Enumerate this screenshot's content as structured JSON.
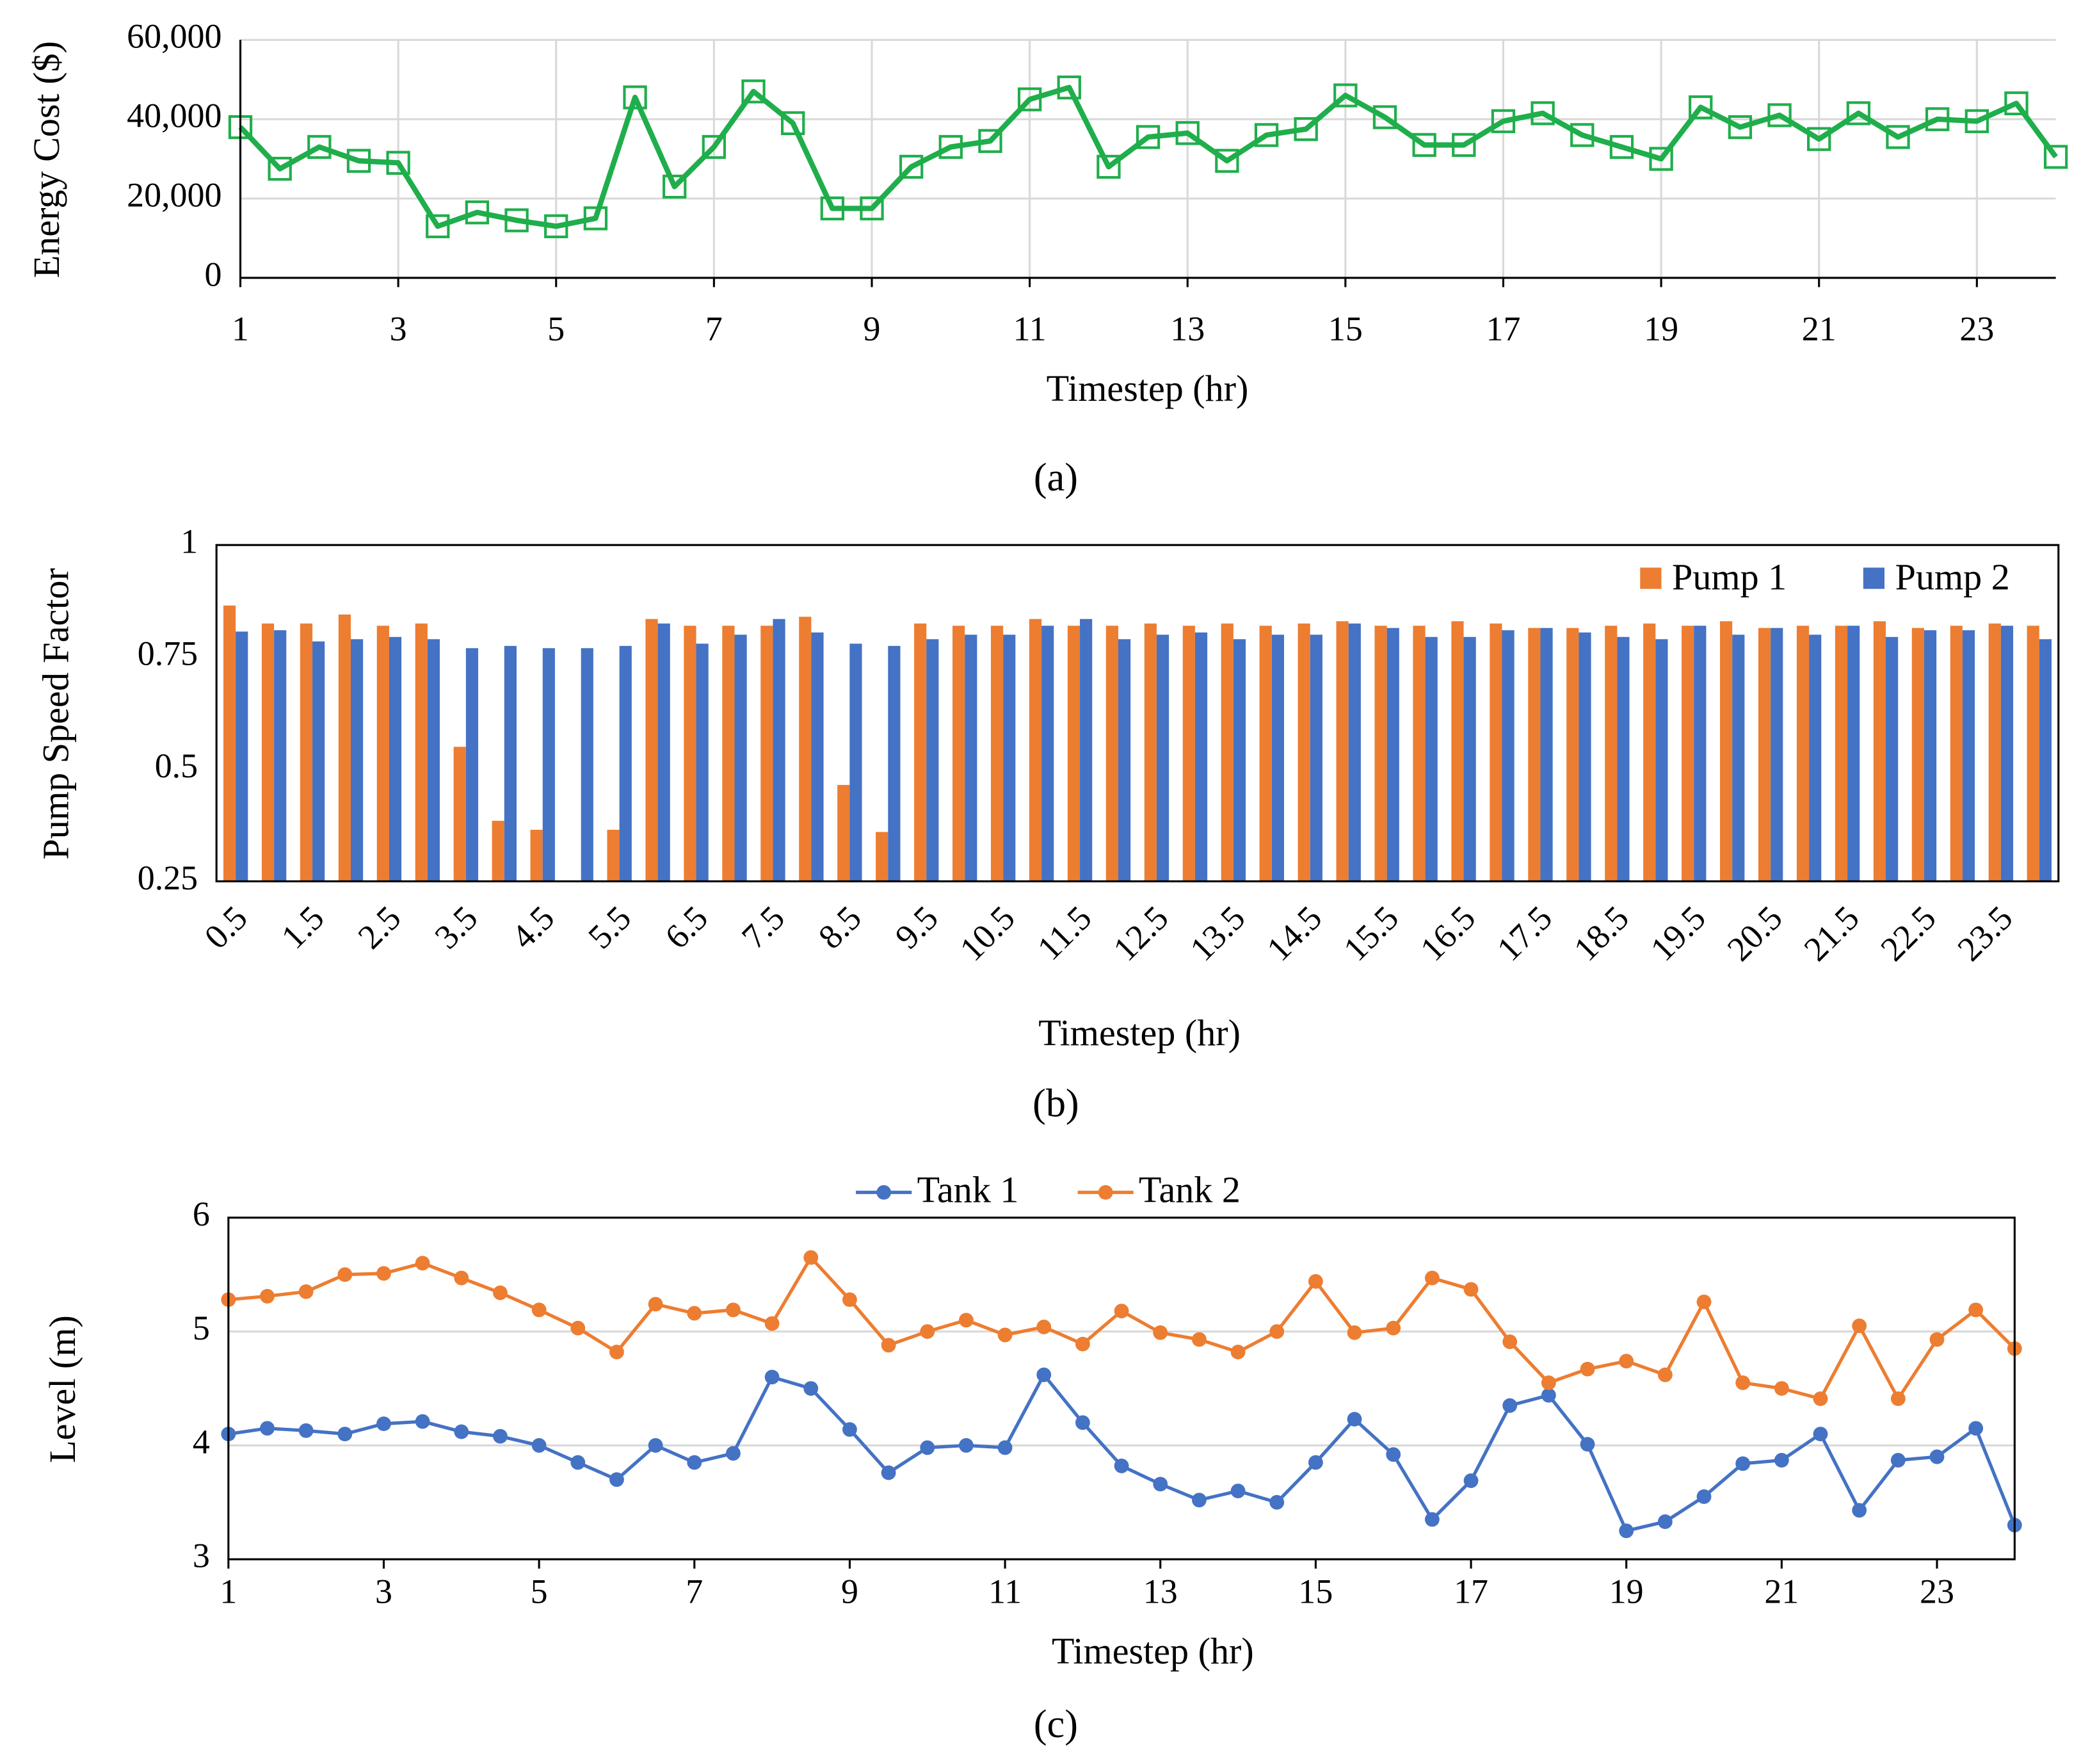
{
  "chart_data": [
    {
      "type": "line",
      "caption": "(a)",
      "x_label": "Timestep (hr)",
      "y_label": "Energy Cost ($)",
      "x": [
        1,
        1.5,
        2,
        2.5,
        3,
        3.5,
        4,
        4.5,
        5,
        5.5,
        6,
        6.5,
        7,
        7.5,
        8,
        8.5,
        9,
        9.5,
        10,
        10.5,
        11,
        11.5,
        12,
        12.5,
        13,
        13.5,
        14,
        14.5,
        15,
        15.5,
        16,
        16.5,
        17,
        17.5,
        18,
        18.5,
        19,
        19.5,
        20,
        20.5,
        21,
        21.5,
        22,
        22.5,
        23,
        23.5,
        24
      ],
      "values": [
        38000,
        27500,
        33000,
        29500,
        29000,
        13000,
        16500,
        14500,
        13000,
        15000,
        45500,
        23000,
        33000,
        47000,
        39000,
        17500,
        17500,
        28000,
        33000,
        34500,
        45000,
        48000,
        28000,
        35500,
        36500,
        29500,
        36000,
        37500,
        46000,
        40500,
        33500,
        33500,
        39500,
        41500,
        36000,
        33000,
        30000,
        43000,
        38000,
        41000,
        35000,
        41500,
        35500,
        40000,
        39500,
        44000,
        30500
      ],
      "color": "#1fae4b",
      "marker": "square",
      "xlim": [
        1,
        24
      ],
      "xticks": [
        1,
        3,
        5,
        7,
        9,
        11,
        13,
        15,
        17,
        19,
        21,
        23
      ],
      "ylim": [
        0,
        60000
      ],
      "yticks": [
        0,
        {
          "value": 20000,
          "label": "20,000"
        },
        {
          "value": 40000,
          "label": "40,000"
        },
        {
          "value": 60000,
          "label": "60,000"
        }
      ],
      "grid": {
        "x": true,
        "y": true
      }
    },
    {
      "type": "bar",
      "caption": "(b)",
      "x_label": "Timestep (hr)",
      "y_label": "Pump Speed Factor",
      "categories": [
        "0.5",
        null,
        "1.5",
        null,
        "2.5",
        null,
        "3.5",
        null,
        "4.5",
        null,
        "5.5",
        null,
        "6.5",
        null,
        "7.5",
        null,
        "8.5",
        null,
        "9.5",
        null,
        "10.5",
        null,
        "11.5",
        null,
        "12.5",
        null,
        "13.5",
        null,
        "14.5",
        null,
        "15.5",
        null,
        "16.5",
        null,
        "17.5",
        null,
        "18.5",
        null,
        "19.5",
        null,
        "20.5",
        null,
        "21.5",
        null,
        "22.5",
        null,
        "23.5",
        null
      ],
      "series": [
        {
          "name": "Pump 1",
          "color": "#ed7d31",
          "values": [
            0.865,
            0.825,
            0.825,
            0.845,
            0.82,
            0.825,
            0.55,
            0.385,
            0.365,
            null,
            0.365,
            0.835,
            0.82,
            0.82,
            0.82,
            0.84,
            0.465,
            0.36,
            0.825,
            0.82,
            0.82,
            0.835,
            0.82,
            0.82,
            0.825,
            0.82,
            0.825,
            0.82,
            0.825,
            0.83,
            0.82,
            0.82,
            0.83,
            0.825,
            0.815,
            0.815,
            0.82,
            0.825,
            0.82,
            0.83,
            0.815,
            0.82,
            0.82,
            0.83,
            0.815,
            0.82,
            0.825,
            0.82
          ]
        },
        {
          "name": "Pump 2",
          "color": "#4472c4",
          "values": [
            0.807,
            0.81,
            0.785,
            0.79,
            0.795,
            0.79,
            0.77,
            0.775,
            0.77,
            0.77,
            0.775,
            0.825,
            0.78,
            0.8,
            0.835,
            0.805,
            0.78,
            0.775,
            0.79,
            0.8,
            0.8,
            0.82,
            0.835,
            0.79,
            0.8,
            0.805,
            0.79,
            0.8,
            0.8,
            0.825,
            0.815,
            0.795,
            0.795,
            0.81,
            0.815,
            0.805,
            0.795,
            0.79,
            0.82,
            0.8,
            0.815,
            0.8,
            0.82,
            0.795,
            0.81,
            0.81,
            0.82,
            0.79
          ]
        }
      ],
      "ylim": [
        0.25,
        1
      ],
      "yticks": [
        0.25,
        0.5,
        0.75,
        1
      ],
      "grid": false,
      "legend": "top-right"
    },
    {
      "type": "line",
      "caption": "(c)",
      "x_label": "Timestep (hr)",
      "y_label": "Level (m)",
      "x": [
        1,
        1.5,
        2,
        2.5,
        3,
        3.5,
        4,
        4.5,
        5,
        5.5,
        6,
        6.5,
        7,
        7.5,
        8,
        8.5,
        9,
        9.5,
        10,
        10.5,
        11,
        11.5,
        12,
        12.5,
        13,
        13.5,
        14,
        14.5,
        15,
        15.5,
        16,
        16.5,
        17,
        17.5,
        18,
        18.5,
        19,
        19.5,
        20,
        20.5,
        21,
        21.5,
        22,
        22.5,
        23,
        23.5,
        24
      ],
      "series": [
        {
          "name": "Tank 1",
          "color": "#4472c4",
          "values": [
            4.1,
            4.15,
            4.13,
            4.1,
            4.19,
            4.21,
            4.12,
            4.08,
            4.0,
            3.85,
            3.7,
            4.0,
            3.85,
            3.93,
            4.6,
            4.5,
            4.14,
            3.76,
            3.98,
            4.0,
            3.98,
            4.62,
            4.2,
            3.82,
            3.66,
            3.52,
            3.6,
            3.5,
            3.85,
            4.23,
            3.92,
            3.35,
            3.69,
            4.35,
            4.44,
            4.01,
            3.25,
            3.33,
            3.55,
            3.84,
            3.87,
            4.1,
            3.43,
            3.87,
            3.9,
            4.15,
            3.3
          ]
        },
        {
          "name": "Tank 2",
          "color": "#ed7d31",
          "values": [
            5.28,
            5.31,
            5.35,
            5.5,
            5.51,
            5.6,
            5.47,
            5.34,
            5.19,
            5.03,
            4.82,
            5.24,
            5.16,
            5.19,
            5.07,
            5.65,
            5.28,
            4.88,
            5.0,
            5.1,
            4.97,
            5.04,
            4.89,
            5.18,
            4.99,
            4.93,
            4.82,
            5.0,
            5.44,
            4.99,
            5.03,
            5.47,
            5.37,
            4.91,
            4.55,
            4.67,
            4.74,
            4.62,
            5.26,
            4.55,
            4.5,
            4.41,
            5.05,
            4.41,
            4.93,
            5.19,
            4.85
          ]
        }
      ],
      "marker": "circle",
      "xlim": [
        1,
        24
      ],
      "xticks": [
        1,
        3,
        5,
        7,
        9,
        11,
        13,
        15,
        17,
        19,
        21,
        23
      ],
      "ylim": [
        3,
        6
      ],
      "yticks": [
        3,
        4,
        5,
        6
      ],
      "grid": {
        "x": false,
        "y": true
      },
      "legend": "top"
    }
  ]
}
